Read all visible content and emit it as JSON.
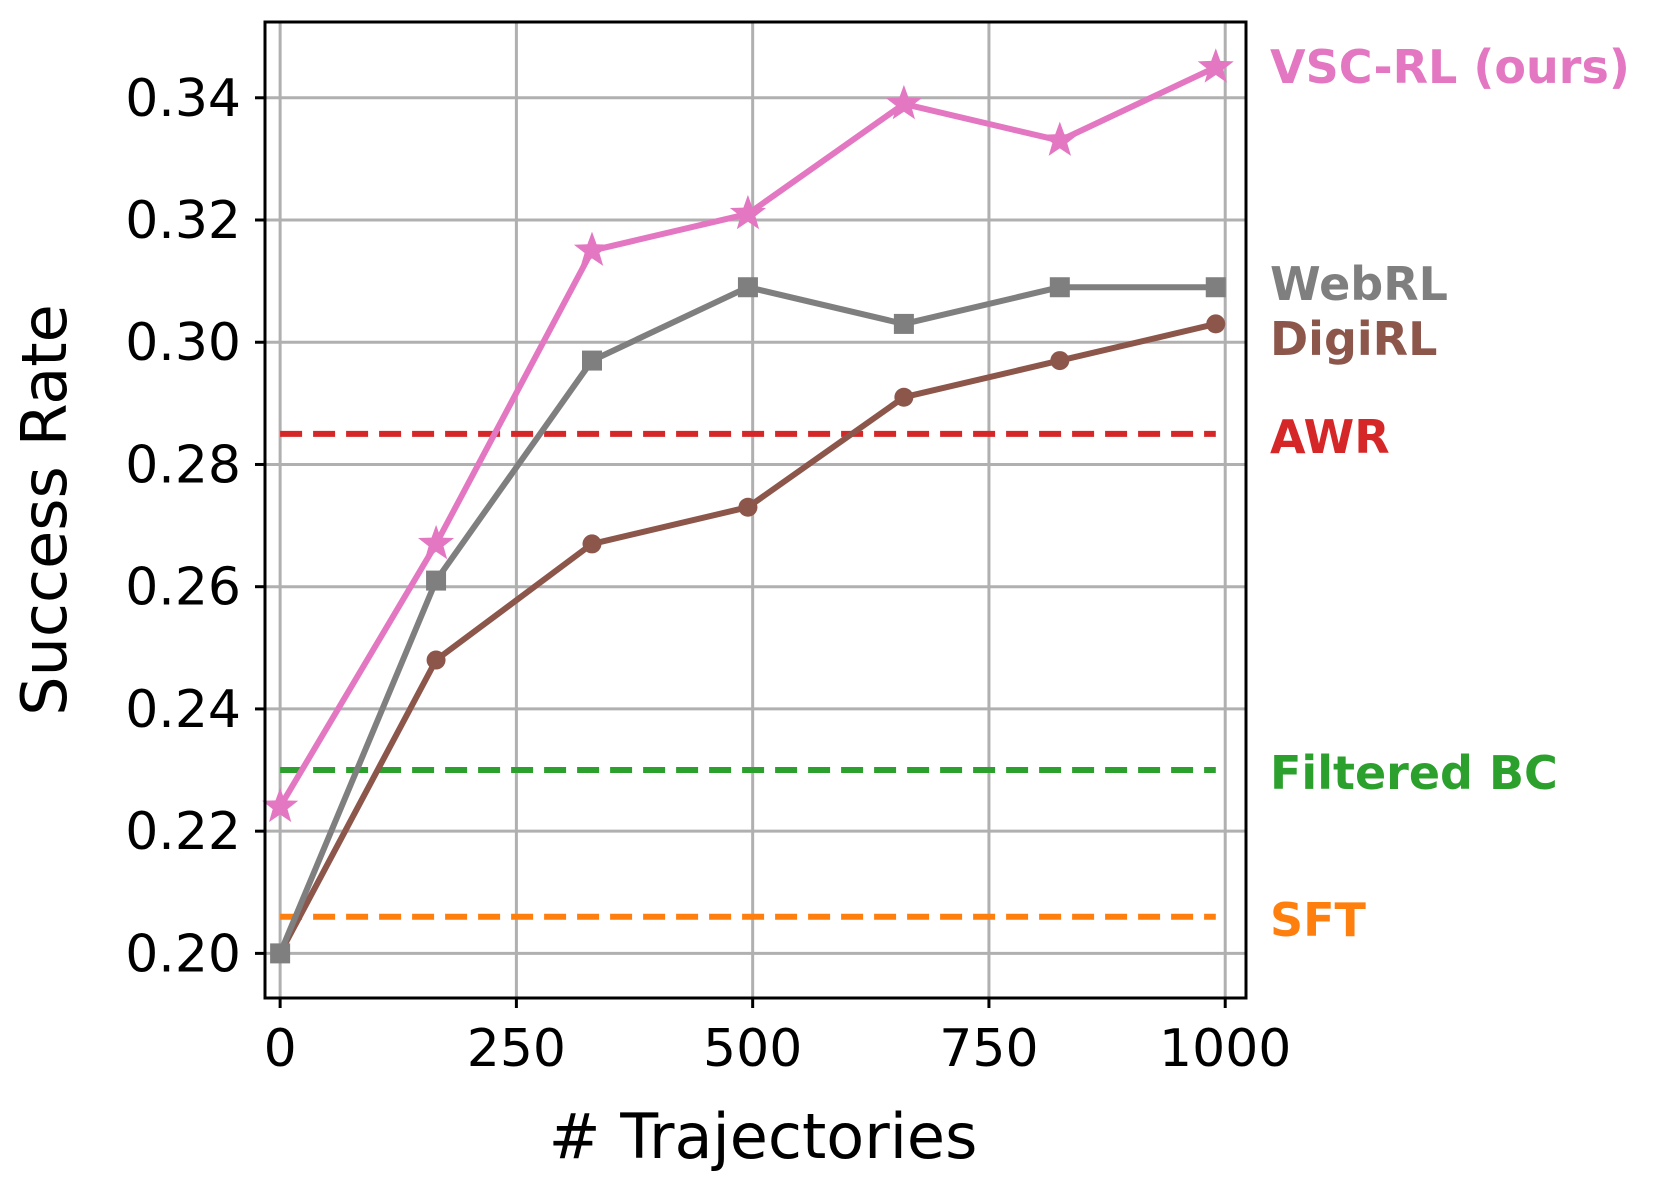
{
  "chart_data": {
    "type": "line",
    "xlabel": "# Trajectories",
    "ylabel": "Success Rate",
    "xlim": [
      -16,
      1022
    ],
    "ylim": [
      0.1927,
      0.3524
    ],
    "xticks": [
      0,
      250,
      500,
      750,
      1000
    ],
    "xtick_labels": [
      "0",
      "250",
      "500",
      "750",
      "1000"
    ],
    "yticks": [
      0.2,
      0.22,
      0.24,
      0.26,
      0.28,
      0.3,
      0.32,
      0.34
    ],
    "ytick_labels": [
      "0.20",
      "0.22",
      "0.24",
      "0.26",
      "0.28",
      "0.30",
      "0.32",
      "0.34"
    ],
    "grid": true,
    "legend": "labels at right end of lines",
    "series": [
      {
        "name": "VSC-RL (ours)",
        "color": "#e377c2",
        "marker": "star",
        "style": "solid",
        "x": [
          0,
          165,
          330,
          495,
          660,
          825,
          990
        ],
        "y": [
          0.224,
          0.267,
          0.315,
          0.321,
          0.339,
          0.333,
          0.345
        ]
      },
      {
        "name": "WebRL",
        "color": "#7f7f7f",
        "marker": "square",
        "style": "solid",
        "x": [
          0,
          165,
          330,
          495,
          660,
          825,
          990
        ],
        "y": [
          0.2,
          0.261,
          0.297,
          0.309,
          0.303,
          0.309,
          0.309
        ]
      },
      {
        "name": "DigiRL",
        "color": "#8c564b",
        "marker": "circle",
        "style": "solid",
        "x": [
          0,
          165,
          330,
          495,
          660,
          825,
          990
        ],
        "y": [
          0.2,
          0.248,
          0.267,
          0.273,
          0.291,
          0.297,
          0.303
        ]
      },
      {
        "name": "AWR",
        "color": "#d62728",
        "marker": "none",
        "style": "dashed",
        "x": [
          0,
          990
        ],
        "y": [
          0.285,
          0.285
        ]
      },
      {
        "name": "Filtered BC",
        "color": "#2ca02c",
        "marker": "none",
        "style": "dashed",
        "x": [
          0,
          990
        ],
        "y": [
          0.23,
          0.23
        ]
      },
      {
        "name": "SFT",
        "color": "#ff7f0e",
        "marker": "none",
        "style": "dashed",
        "x": [
          0,
          990
        ],
        "y": [
          0.206,
          0.206
        ]
      }
    ]
  }
}
